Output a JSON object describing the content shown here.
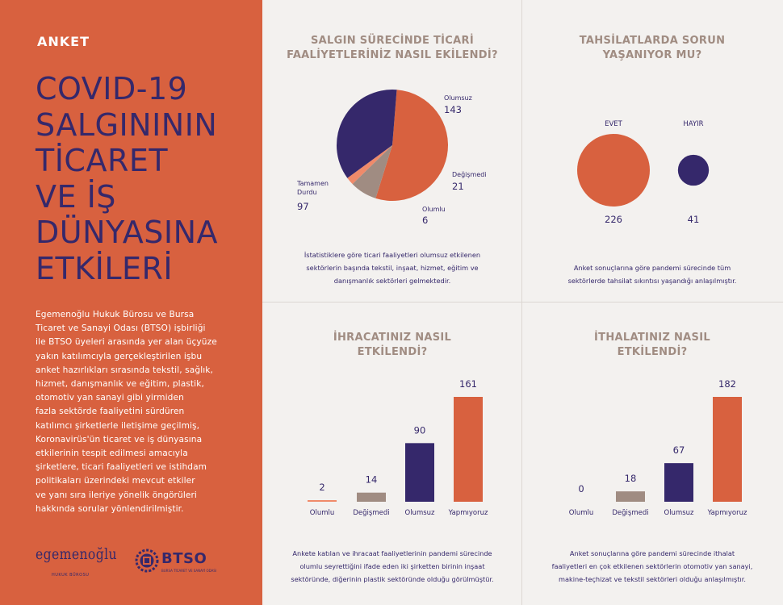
{
  "left": {
    "tag": "ANKET",
    "headline": [
      "COVID-19",
      "SALGINININ",
      "TİCARET",
      "VE İŞ",
      "DÜNYASINA",
      "ETKİLERİ"
    ],
    "body": [
      "Egemenoğlu Hukuk Bürosu ve Bursa",
      "Ticaret ve Sanayi Odası (BTSO) işbirliği",
      "ile BTSO üyeleri arasında yer alan üçyüze",
      "yakın katılımcıyla gerçekleştirilen işbu",
      "anket hazırlıkları sırasında tekstil, sağlık,",
      "hizmet, danışmanlık ve eğitim, plastik,",
      "otomotiv yan sanayi gibi yirmiden",
      "fazla sektörde faaliyetini sürdüren",
      "katılımcı şirketlerle iletişime geçilmiş,",
      "Koronavirüs'ün ticaret ve iş dünyasına",
      "etkilerinin tespit edilmesi amacıyla",
      "şirketlere, ticari faaliyetleri ve istihdam",
      "politikaları üzerindeki mevcut etkiler",
      "ve yanı sıra ileriye yönelik öngörüleri",
      "hakkında sorular yönlendirilmiştir."
    ],
    "logo1": {
      "name": "egemenoğlu",
      "sub": "HUKUK BÜROSU"
    },
    "logo2": {
      "name": "BTSO",
      "sub": "BURSA TİCARET VE SANAYİ ODASI"
    }
  },
  "colors": {
    "orange": "#d8613f",
    "purple": "#35286b",
    "grey": "#a08c82",
    "salmon": "#f08a6a",
    "background": "#f3f1ef"
  },
  "chart_data": [
    {
      "type": "pie",
      "title": [
        "SALGIN SÜRECİNDE TİCARİ",
        "FAALİYETLERİNİZ NASIL EKİLENDİ?"
      ],
      "slices": [
        {
          "label": "Olumsuz",
          "value": 143,
          "color": "#d8613f"
        },
        {
          "label": "Değişmedi",
          "value": 21,
          "color": "#a08c82"
        },
        {
          "label": "Olumlu",
          "value": 6,
          "color": "#f08a6a"
        },
        {
          "label": "Tamamen Durdu",
          "value": 97,
          "color": "#35286b"
        }
      ],
      "note": [
        "İstatistiklere göre ticari faaliyetleri olumsuz etkilenen",
        "sektörlerin başında tekstil, inşaat, hizmet, eğitim ve",
        "danışmanlık sektörleri gelmektedir."
      ]
    },
    {
      "type": "bubble",
      "title": [
        "TAHSİLATLARDA SORUN",
        "YAŞANIYOR MU?"
      ],
      "items": [
        {
          "label": "EVET",
          "value": 226,
          "color": "#d8613f"
        },
        {
          "label": "HAYIR",
          "value": 41,
          "color": "#35286b"
        }
      ],
      "note": [
        "Anket sonuçlarına göre pandemi sürecinde tüm",
        "sektörlerde tahsilat sıkıntısı yaşandığı anlaşılmıştır."
      ]
    },
    {
      "type": "bar",
      "title": [
        "İHRACATINIZ NASIL",
        "ETKİLENDİ?"
      ],
      "categories": [
        "Olumlu",
        "Değişmedi",
        "Olumsuz",
        "Yapmıyoruz"
      ],
      "values": [
        2,
        14,
        90,
        161
      ],
      "colors": [
        "#f08a6a",
        "#a08c82",
        "#35286b",
        "#d8613f"
      ],
      "note": [
        "Ankete katılan ve ihracaat faaliyetlerinin pandemi sürecinde",
        "olumlu seyrettiğini ifade eden iki şirketten birinin inşaat",
        "sektöründe, diğerinin plastik sektöründe olduğu görülmüştür."
      ]
    },
    {
      "type": "bar",
      "title": [
        "İTHALATINIZ NASIL",
        "ETKİLENDİ?"
      ],
      "categories": [
        "Olumlu",
        "Değişmedi",
        "Olumsuz",
        "Yapmıyoruz"
      ],
      "values": [
        0,
        18,
        67,
        182
      ],
      "colors": [
        "#f08a6a",
        "#a08c82",
        "#35286b",
        "#d8613f"
      ],
      "note": [
        "Anket sonuçlarına göre  pandemi sürecinde ithalat",
        "faaliyetleri en çok etkilenen sektörlerin otomotiv yan sanayi,",
        "makine-teçhizat ve tekstil sektörleri olduğu anlaşılmıştır."
      ]
    }
  ]
}
